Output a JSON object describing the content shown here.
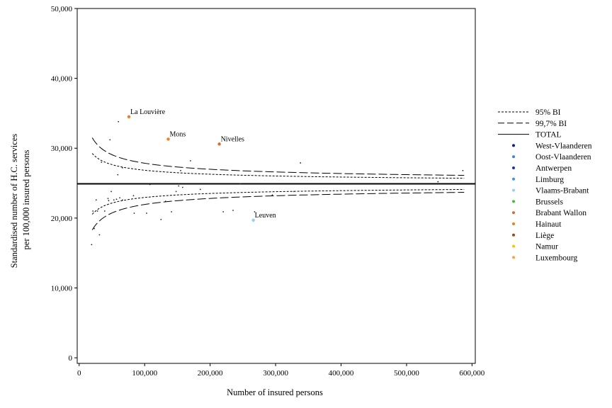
{
  "chart_data": {
    "type": "scatter",
    "xlabel": "Number of insured persons",
    "ylabel_lines": [
      "Standardised number of H.C. services",
      "per 100,000 insured persons"
    ],
    "xlim": [
      -3000,
      605000
    ],
    "ylim": [
      -800,
      50000
    ],
    "x_ticks": [
      0,
      100000,
      200000,
      300000,
      400000,
      500000,
      600000
    ],
    "x_tick_labels": [
      "0",
      "100,000",
      "200,000",
      "300,000",
      "400,000",
      "500,000",
      "600,000"
    ],
    "y_ticks": [
      0,
      10000,
      20000,
      30000,
      40000,
      50000
    ],
    "y_tick_labels": [
      "0",
      "10,000",
      "20,000",
      "30,000",
      "40,000",
      "50,000"
    ],
    "grid": false,
    "legend_position": "right",
    "total": 24900,
    "funnel": {
      "x_start": 20000,
      "x_end": 588000,
      "z95": 1.96,
      "z997": 2.97,
      "scale": 6.3
    },
    "legend": [
      {
        "label": "95% BI",
        "style": "dotted"
      },
      {
        "label": "99,7% BI",
        "style": "dashed"
      },
      {
        "label": "TOTAL",
        "style": "solid"
      },
      {
        "label": "West-Vlaanderen",
        "color": "#0a1f78"
      },
      {
        "label": "Oost-Vlaanderen",
        "color": "#4a7fd4"
      },
      {
        "label": "Antwerpen",
        "color": "#1a2fbf"
      },
      {
        "label": "Limburg",
        "color": "#3d96e8"
      },
      {
        "label": "Vlaams-Brabant",
        "color": "#8fd0f5"
      },
      {
        "label": "Brussels",
        "color": "#3cbc3c"
      },
      {
        "label": "Brabant Wallon",
        "color": "#d86a32"
      },
      {
        "label": "Hainaut",
        "color": "#ee7e22"
      },
      {
        "label": "Liège",
        "color": "#9a4a1a"
      },
      {
        "label": "Namur",
        "color": "#f6c21a"
      },
      {
        "label": "Luxembourg",
        "color": "#f2a348"
      }
    ],
    "labeled_points": [
      {
        "label": "La Louvière",
        "x": 76000,
        "y": 34500,
        "color": "#ee7e22"
      },
      {
        "label": "Mons",
        "x": 136000,
        "y": 31300,
        "color": "#ee7e22"
      },
      {
        "label": "Nivelles",
        "x": 214000,
        "y": 30600,
        "color": "#d86a32"
      },
      {
        "label": "Leuven",
        "x": 266000,
        "y": 19700,
        "color": "#8fd0f5"
      }
    ],
    "points": [
      [
        19000,
        16200
      ],
      [
        21000,
        21000
      ],
      [
        23000,
        18500
      ],
      [
        26000,
        22600
      ],
      [
        28000,
        21000
      ],
      [
        31000,
        17600
      ],
      [
        34000,
        28000
      ],
      [
        39000,
        21000
      ],
      [
        44000,
        22800
      ],
      [
        45000,
        22500
      ],
      [
        47000,
        31200
      ],
      [
        49000,
        23800
      ],
      [
        53000,
        22600
      ],
      [
        57000,
        22700
      ],
      [
        59000,
        26200
      ],
      [
        60000,
        33800
      ],
      [
        62000,
        22900
      ],
      [
        66000,
        27200
      ],
      [
        66000,
        22600
      ],
      [
        83000,
        23200
      ],
      [
        84000,
        20700
      ],
      [
        103000,
        20700
      ],
      [
        108000,
        24800
      ],
      [
        125000,
        19800
      ],
      [
        132000,
        22400
      ],
      [
        141000,
        20900
      ],
      [
        148000,
        23800
      ],
      [
        152000,
        24600
      ],
      [
        155000,
        26800
      ],
      [
        158000,
        24400
      ],
      [
        170000,
        28200
      ],
      [
        185000,
        24100
      ],
      [
        220000,
        20900
      ],
      [
        235000,
        21100
      ],
      [
        246000,
        24900
      ],
      [
        268000,
        20900
      ],
      [
        295000,
        23300
      ],
      [
        328000,
        23800
      ],
      [
        338000,
        27900
      ],
      [
        548000,
        25200
      ],
      [
        586000,
        26800
      ]
    ]
  }
}
